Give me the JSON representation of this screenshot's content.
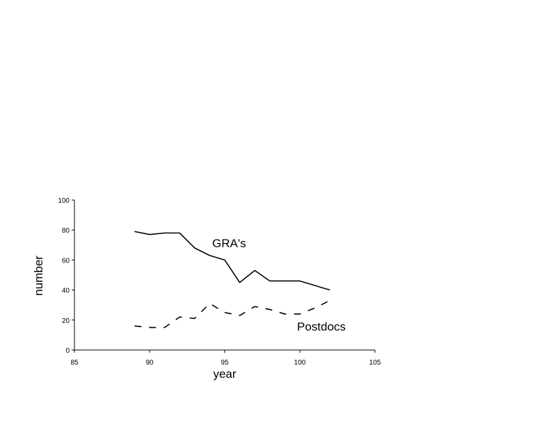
{
  "chart_data": {
    "type": "line",
    "title": "",
    "xlabel": "year",
    "ylabel": "number",
    "xlim": [
      85,
      105
    ],
    "ylim": [
      0,
      100
    ],
    "xticks": [
      85,
      90,
      95,
      100,
      105
    ],
    "yticks": [
      0,
      20,
      40,
      60,
      80,
      100
    ],
    "grid": false,
    "legend": "none",
    "series": [
      {
        "name": "GRA's",
        "style": "solid",
        "color": "#000000",
        "x": [
          89,
          90,
          91,
          92,
          93,
          94,
          95,
          96,
          97,
          98,
          99,
          100,
          101,
          102
        ],
        "y": [
          79,
          77,
          78,
          78,
          68,
          63,
          60,
          45,
          53,
          46,
          46,
          46,
          43,
          40
        ]
      },
      {
        "name": "Postdocs",
        "style": "dashed",
        "color": "#000000",
        "x": [
          89,
          90,
          91,
          92,
          93,
          94,
          95,
          96,
          97,
          98,
          99,
          100,
          101,
          102
        ],
        "y": [
          16,
          15,
          15,
          22,
          21,
          31,
          25,
          23,
          29,
          27,
          24,
          24,
          28,
          33
        ]
      }
    ]
  }
}
